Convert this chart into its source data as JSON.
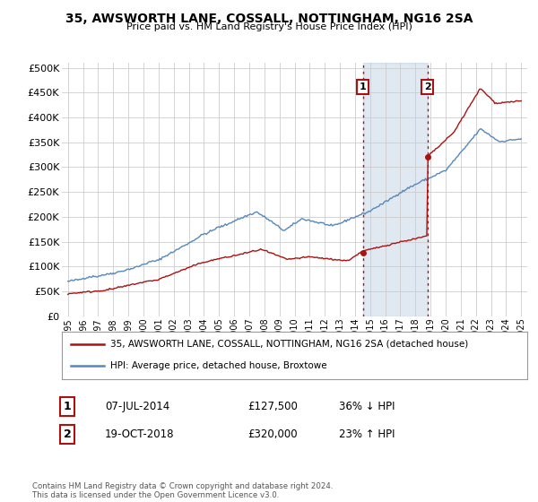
{
  "title": "35, AWSWORTH LANE, COSSALL, NOTTINGHAM, NG16 2SA",
  "subtitle": "Price paid vs. HM Land Registry's House Price Index (HPI)",
  "ytick_values": [
    0,
    50000,
    100000,
    150000,
    200000,
    250000,
    300000,
    350000,
    400000,
    450000,
    500000
  ],
  "ylim": [
    0,
    510000
  ],
  "xlim_start": 1994.6,
  "xlim_end": 2025.4,
  "xtick_years": [
    1995,
    1996,
    1997,
    1998,
    1999,
    2000,
    2001,
    2002,
    2003,
    2004,
    2005,
    2006,
    2007,
    2008,
    2009,
    2010,
    2011,
    2012,
    2013,
    2014,
    2015,
    2016,
    2017,
    2018,
    2019,
    2020,
    2021,
    2022,
    2023,
    2024,
    2025
  ],
  "hpi_color": "#5588bb",
  "price_color": "#aa1111",
  "transaction1_x": 2014.52,
  "transaction1_y": 127500,
  "transaction1_label": "1",
  "transaction2_x": 2018.8,
  "transaction2_y": 320000,
  "transaction2_label": "2",
  "shaded_x_start": 2014.52,
  "shaded_x_end": 2018.8,
  "legend_line1": "35, AWSWORTH LANE, COSSALL, NOTTINGHAM, NG16 2SA (detached house)",
  "legend_line2": "HPI: Average price, detached house, Broxtowe",
  "annotation1_date": "07-JUL-2014",
  "annotation1_price": "£127,500",
  "annotation1_hpi": "36% ↓ HPI",
  "annotation2_date": "19-OCT-2018",
  "annotation2_price": "£320,000",
  "annotation2_hpi": "23% ↑ HPI",
  "footer": "Contains HM Land Registry data © Crown copyright and database right 2024.\nThis data is licensed under the Open Government Licence v3.0.",
  "background_color": "#ffffff",
  "grid_color": "#cccccc"
}
